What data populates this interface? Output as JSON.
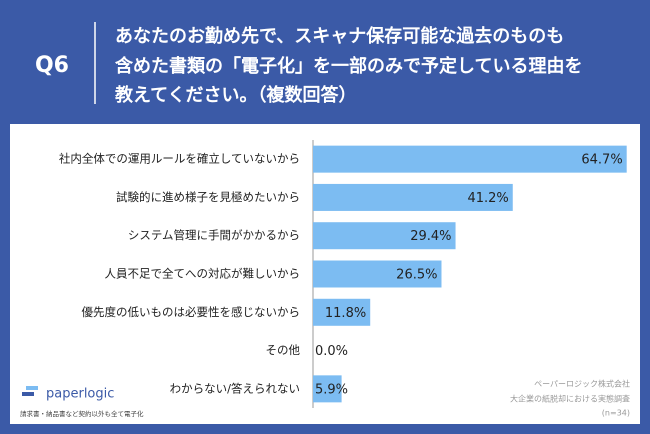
{
  "chart_data": {
    "type": "bar",
    "orientation": "horizontal",
    "question_no": "Q6",
    "title": [
      "あなたのお勤め先で、スキャナ保存可能な過去のものも",
      "含めた書類の「電子化」を一部のみで予定している理由を",
      "教えてください。（複数回答）"
    ],
    "categories": [
      "社内全体での運用ルールを確立していないから",
      "試験的に進め様子を見極めたいから",
      "システム管理に手間がかかるから",
      "人員不足で全てへの対応が難しいから",
      "優先度の低いものは必要性を感じないから",
      "その他",
      "わからない/答えられない"
    ],
    "values": [
      64.7,
      41.2,
      29.4,
      26.5,
      11.8,
      0.0,
      5.9
    ],
    "value_labels": [
      "64.7%",
      "41.2%",
      "29.4%",
      "26.5%",
      "11.8%",
      "0.0%",
      "5.9%"
    ],
    "color": "#7cbcf2",
    "xlim": [
      0,
      66
    ]
  },
  "logo": {
    "name": "paperlogic",
    "tagline": "請求書・納品書など契約以外も全て電子化"
  },
  "source": [
    "ペーパーロジック株式会社",
    "大企業の紙脱却における実態調査",
    "(n=34)"
  ]
}
